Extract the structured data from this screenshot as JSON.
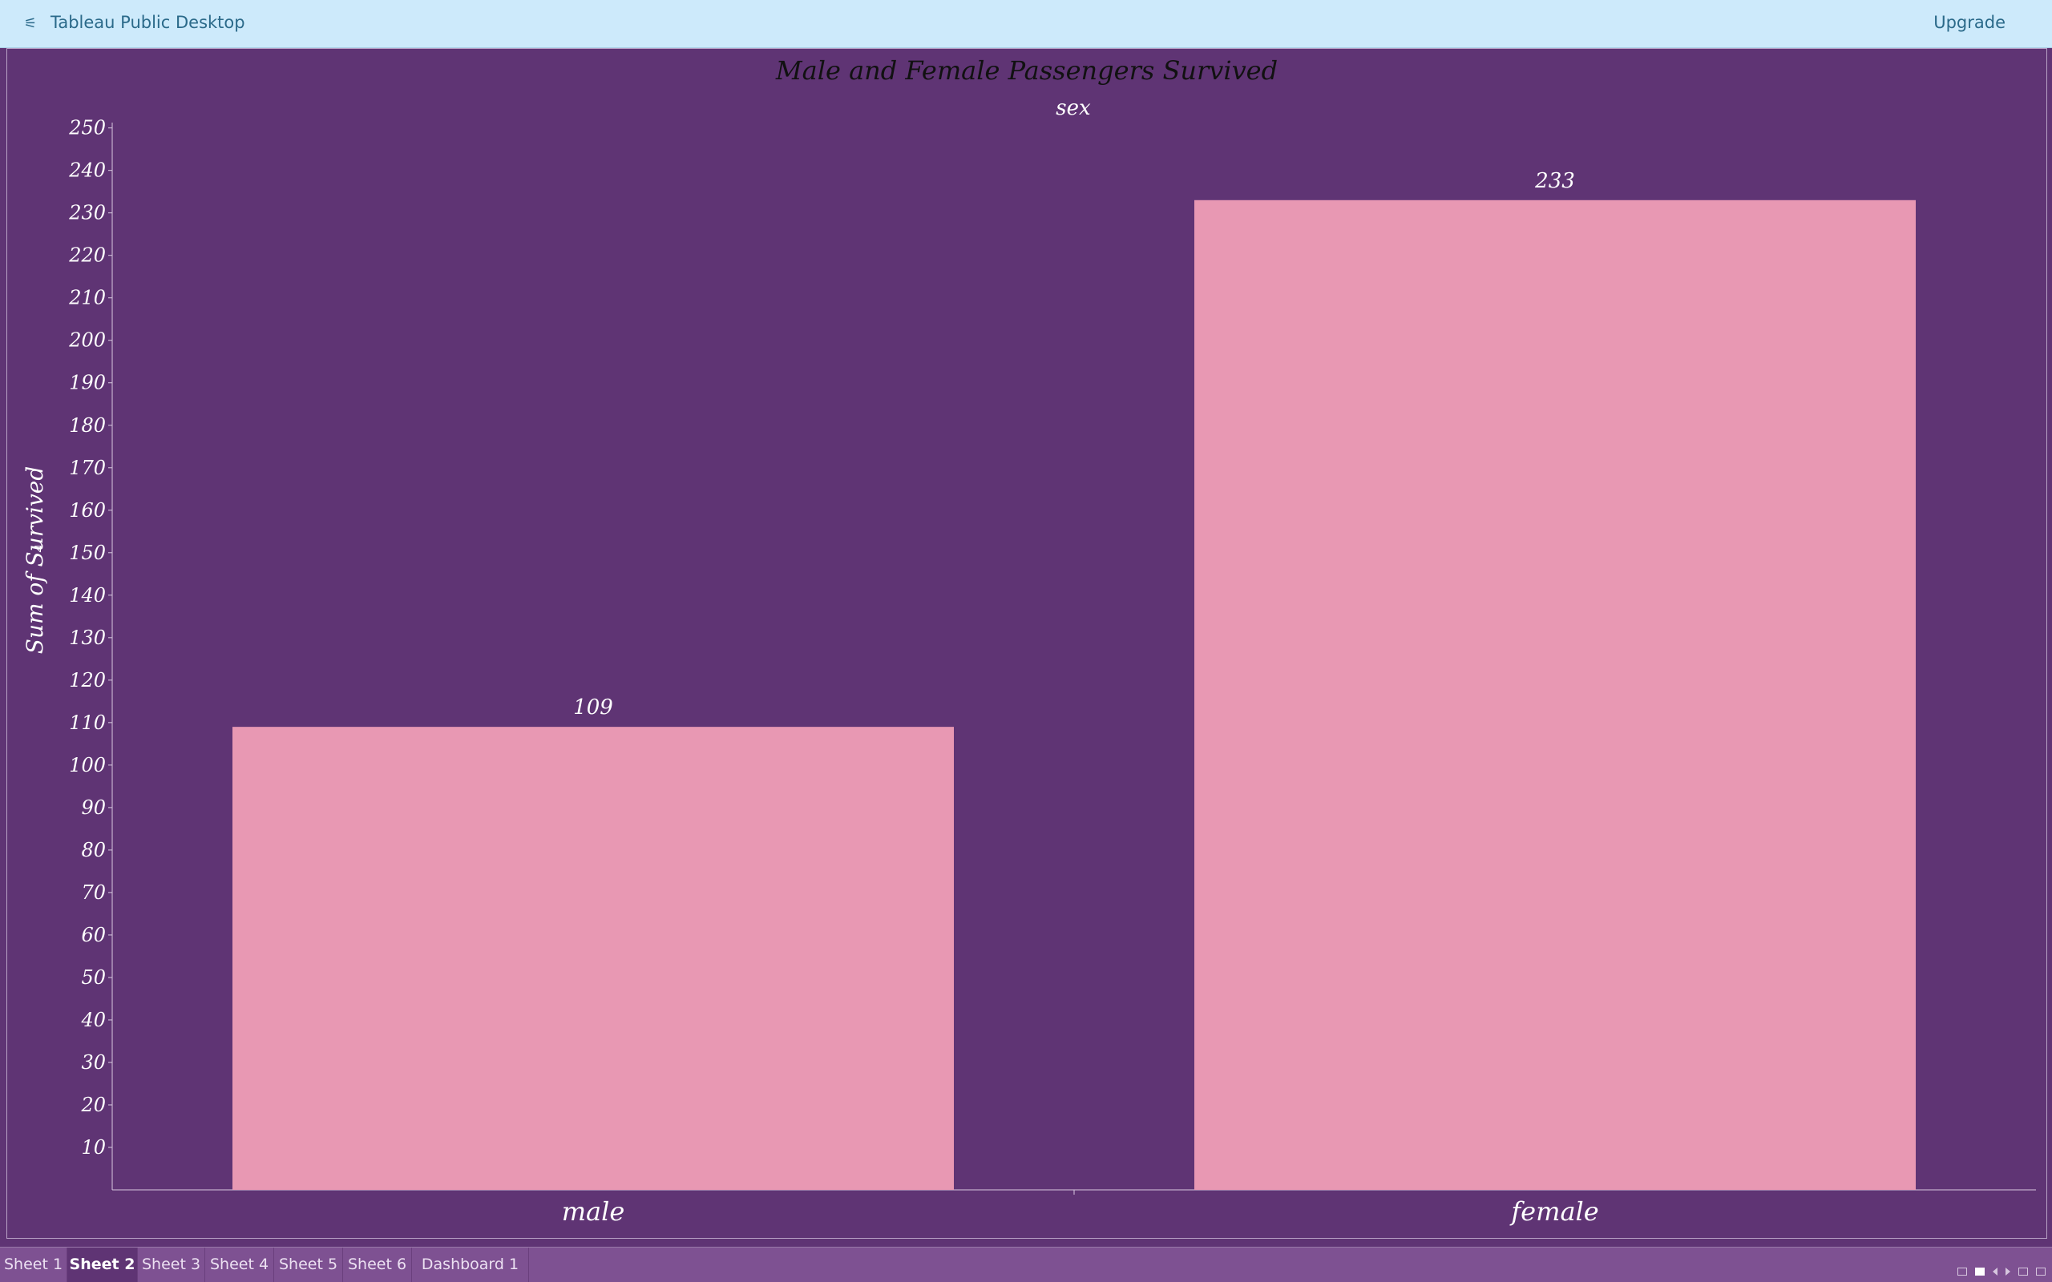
{
  "app": {
    "title": "Tableau Public Desktop",
    "upgrade_label": "Upgrade",
    "icon": "tableau-icon"
  },
  "chart_data": {
    "type": "bar",
    "title": "Male and Female Passengers Survived",
    "header": "sex",
    "ylabel": "Sum of Survived",
    "categories": [
      "male",
      "female"
    ],
    "values": [
      109,
      233
    ],
    "data_labels": [
      "109",
      "233"
    ],
    "ylim": [
      0,
      250
    ],
    "yticks": [
      10,
      20,
      30,
      40,
      50,
      60,
      70,
      80,
      90,
      100,
      110,
      120,
      130,
      140,
      150,
      160,
      170,
      180,
      190,
      200,
      210,
      220,
      230,
      240,
      250
    ],
    "grid": false,
    "bar_color": "#e898b3",
    "background_color": "#5f3474"
  },
  "tabs": [
    {
      "label": "Sheet 1",
      "active": false
    },
    {
      "label": "Sheet 2",
      "active": true
    },
    {
      "label": "Sheet 3",
      "active": false
    },
    {
      "label": "Sheet 4",
      "active": false
    },
    {
      "label": "Sheet 5",
      "active": false
    },
    {
      "label": "Sheet 6",
      "active": false
    },
    {
      "label": "Dashboard 1",
      "active": false
    }
  ],
  "status_icons": [
    "grid-view-icon",
    "single-view-icon",
    "prev-sheet-icon",
    "next-sheet-icon",
    "fullscreen-icon",
    "presentation-icon"
  ]
}
